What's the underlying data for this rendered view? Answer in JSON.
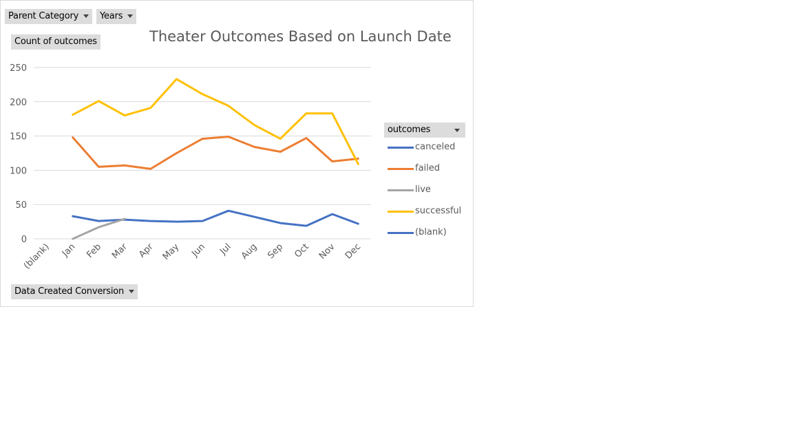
{
  "filters": {
    "parent_category": "Parent Category",
    "years": "Years",
    "values_field": "Count of outcomes",
    "axis_field": "Data Created Conversion",
    "legend_field": "outcomes"
  },
  "chart_data": {
    "type": "line",
    "title": "Theater Outcomes Based on Launch Date",
    "xlabel": "",
    "ylabel": "",
    "ylim": [
      0,
      250
    ],
    "yticks": [
      0,
      50,
      100,
      150,
      200,
      250
    ],
    "grid": true,
    "legend_position": "right",
    "categories": [
      "(blank)",
      "Jan",
      "Feb",
      "Mar",
      "Apr",
      "May",
      "Jun",
      "Jul",
      "Aug",
      "Sep",
      "Oct",
      "Nov",
      "Dec"
    ],
    "series": [
      {
        "name": "canceled",
        "color": "#4472c4",
        "values": [
          null,
          33,
          26,
          28,
          26,
          25,
          26,
          41,
          32,
          23,
          19,
          36,
          22
        ]
      },
      {
        "name": "failed",
        "color": "#ed7d31",
        "values": [
          null,
          148,
          105,
          107,
          102,
          125,
          146,
          149,
          134,
          127,
          147,
          113,
          117
        ]
      },
      {
        "name": "live",
        "color": "#a5a5a5",
        "values": [
          null,
          0,
          17,
          29,
          null,
          null,
          null,
          null,
          null,
          null,
          null,
          null,
          null
        ]
      },
      {
        "name": "successful",
        "color": "#ffc000",
        "values": [
          null,
          181,
          201,
          180,
          191,
          233,
          211,
          194,
          166,
          146,
          183,
          183,
          109
        ]
      },
      {
        "name": "(blank)",
        "color": "#4472c4",
        "values": [
          null,
          null,
          null,
          null,
          null,
          null,
          null,
          null,
          null,
          null,
          null,
          null,
          null
        ]
      }
    ]
  }
}
